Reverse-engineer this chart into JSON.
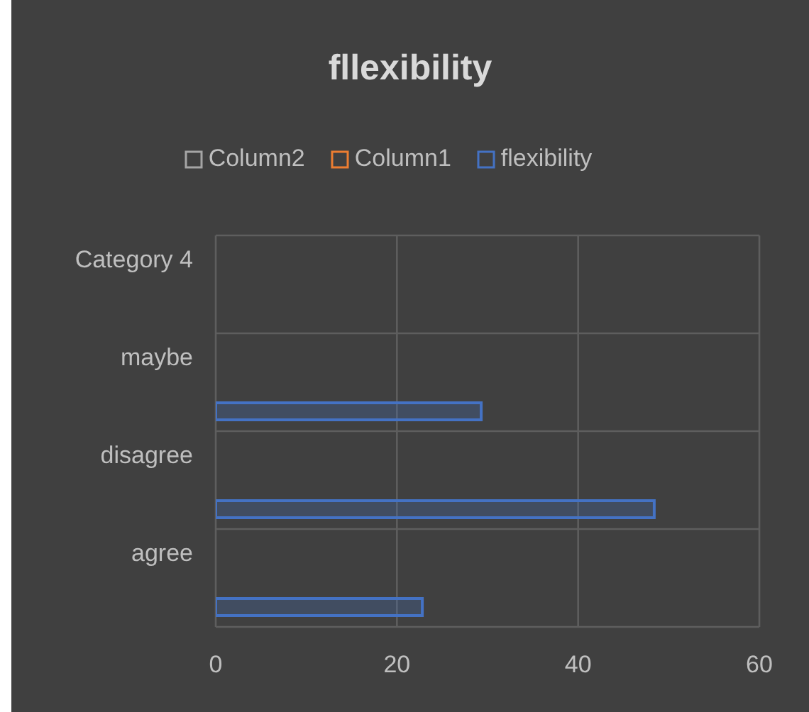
{
  "chart_data": {
    "type": "bar",
    "title": "fllexibility",
    "orientation": "horizontal",
    "categories": [
      "Category 4",
      "maybe",
      "disagree",
      "agree"
    ],
    "series": [
      {
        "name": "Column2",
        "color": "#a5a5a5",
        "values": [
          null,
          null,
          null,
          null
        ]
      },
      {
        "name": "Column1",
        "color": "#ed7d31",
        "values": [
          null,
          null,
          null,
          null
        ]
      },
      {
        "name": "flexibility",
        "color": "#4472c4",
        "values": [
          null,
          29.3,
          48.4,
          22.8
        ]
      }
    ],
    "xlim": [
      0,
      60
    ],
    "xticks": [
      0,
      20,
      40,
      60
    ],
    "grid": true,
    "legend": "top"
  }
}
